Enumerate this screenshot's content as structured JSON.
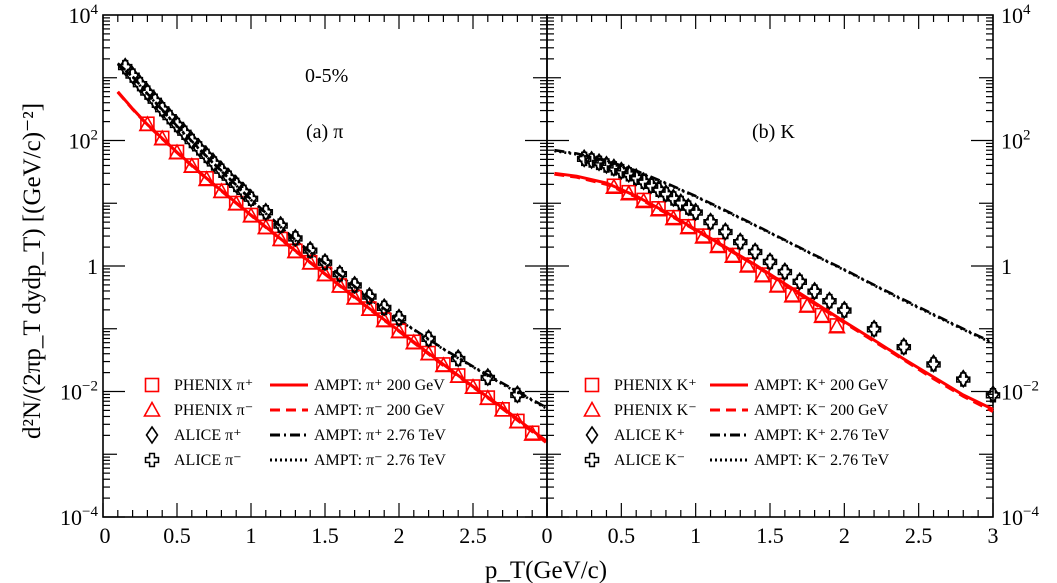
{
  "figure": {
    "ylabel": "d²N/(2πp_T dydp_T) [(GeV/c)⁻²]",
    "xlabel": "p_T(GeV/c)",
    "x_tick_labels": [
      "0",
      "0.5",
      "1",
      "1.5",
      "2",
      "2.5",
      "0",
      "0.5",
      "1",
      "1.5",
      "2",
      "2.5",
      "3"
    ],
    "y_tick_labels": [
      "10^-4",
      "10^-2",
      "1",
      "10^2",
      "10^4"
    ]
  },
  "chart_data": [
    {
      "type": "scatter",
      "panel": "left",
      "annotations": [
        "0-5%",
        "(a) π"
      ],
      "xlim": [
        0,
        3
      ],
      "ylim": [
        0.0001,
        10000
      ],
      "yscale": "log",
      "series": [
        {
          "name": "PHENIX π⁺",
          "marker": "square",
          "color": "#ff0000",
          "x": [
            0.3,
            0.4,
            0.5,
            0.6,
            0.7,
            0.8,
            0.9,
            1.0,
            1.1,
            1.2,
            1.3,
            1.4,
            1.5,
            1.6,
            1.7,
            1.8,
            1.9,
            2.0,
            2.1,
            2.2,
            2.3,
            2.4,
            2.5,
            2.6,
            2.7,
            2.8,
            2.9
          ],
          "y": [
            185,
            110,
            66,
            40,
            25,
            15.8,
            10.1,
            6.5,
            4.2,
            2.7,
            1.75,
            1.15,
            0.75,
            0.49,
            0.32,
            0.21,
            0.14,
            0.093,
            0.062,
            0.041,
            0.027,
            0.018,
            0.012,
            0.008,
            0.0052,
            0.0034,
            0.0022
          ]
        },
        {
          "name": "PHENIX π⁻",
          "marker": "triangle",
          "color": "#ff0000",
          "x": [
            0.3,
            0.4,
            0.5,
            0.6,
            0.7,
            0.8,
            0.9,
            1.0,
            1.1,
            1.2,
            1.3,
            1.4,
            1.5,
            1.6,
            1.7,
            1.8,
            1.9,
            2.0,
            2.1,
            2.2,
            2.3,
            2.4,
            2.5,
            2.6,
            2.7,
            2.8,
            2.9
          ],
          "y": [
            180,
            107,
            64,
            39,
            24,
            15.4,
            9.8,
            6.3,
            4.1,
            2.65,
            1.7,
            1.12,
            0.73,
            0.48,
            0.31,
            0.205,
            0.135,
            0.09,
            0.06,
            0.04,
            0.026,
            0.0175,
            0.0117,
            0.0078,
            0.0051,
            0.0033,
            0.0021
          ]
        },
        {
          "name": "ALICE π⁺",
          "marker": "diamond",
          "color": "#000000",
          "x": [
            0.15,
            0.2,
            0.25,
            0.3,
            0.35,
            0.4,
            0.45,
            0.5,
            0.55,
            0.6,
            0.65,
            0.7,
            0.75,
            0.8,
            0.85,
            0.9,
            0.95,
            1.0,
            1.1,
            1.2,
            1.3,
            1.4,
            1.5,
            1.6,
            1.7,
            1.8,
            1.9,
            2.0,
            2.2,
            2.4,
            2.6,
            2.8
          ],
          "y": [
            1500,
            1100,
            800,
            590,
            435,
            320,
            240,
            180,
            135,
            100,
            76,
            58,
            44,
            34,
            26,
            20,
            15.5,
            12,
            7.3,
            4.5,
            2.8,
            1.8,
            1.15,
            0.75,
            0.5,
            0.33,
            0.22,
            0.15,
            0.07,
            0.034,
            0.017,
            0.009
          ]
        },
        {
          "name": "ALICE π⁻",
          "marker": "cross",
          "color": "#000000",
          "x": [
            0.15,
            0.2,
            0.25,
            0.3,
            0.35,
            0.4,
            0.45,
            0.5,
            0.55,
            0.6,
            0.65,
            0.7,
            0.75,
            0.8,
            0.85,
            0.9,
            0.95,
            1.0,
            1.1,
            1.2,
            1.3,
            1.4,
            1.5,
            1.6,
            1.7,
            1.8,
            1.9,
            2.0,
            2.2,
            2.4,
            2.6,
            2.8
          ],
          "y": [
            1480,
            1080,
            790,
            580,
            430,
            315,
            236,
            177,
            133,
            98,
            75,
            57,
            43,
            33,
            25.5,
            19.6,
            15.2,
            11.8,
            7.2,
            4.4,
            2.75,
            1.76,
            1.13,
            0.74,
            0.49,
            0.325,
            0.215,
            0.147,
            0.069,
            0.033,
            0.0165,
            0.0088
          ]
        },
        {
          "name": "AMPT: π⁺ 200 GeV",
          "line": "solid",
          "color": "#ff0000",
          "x": [
            0.1,
            0.2,
            0.3,
            0.5,
            0.7,
            1.0,
            1.3,
            1.5,
            1.8,
            2.0,
            2.3,
            2.5,
            2.7,
            2.9,
            3.0
          ],
          "y": [
            600,
            320,
            180,
            65,
            25,
            6.5,
            1.75,
            0.75,
            0.21,
            0.093,
            0.027,
            0.012,
            0.0055,
            0.0024,
            0.0016
          ]
        },
        {
          "name": "AMPT: π⁻ 200 GeV",
          "line": "dashed",
          "color": "#ff0000",
          "x": [
            0.1,
            0.2,
            0.3,
            0.5,
            0.7,
            1.0,
            1.3,
            1.5,
            1.8,
            2.0,
            2.3,
            2.5,
            2.7,
            2.9,
            3.0
          ],
          "y": [
            590,
            315,
            177,
            64,
            24.5,
            6.4,
            1.72,
            0.74,
            0.205,
            0.091,
            0.026,
            0.0118,
            0.0053,
            0.0023,
            0.0015
          ]
        },
        {
          "name": "AMPT: π⁺ 2.76 TeV",
          "line": "dashdot",
          "color": "#000000",
          "x": [
            0.1,
            0.2,
            0.3,
            0.5,
            0.7,
            1.0,
            1.3,
            1.5,
            1.8,
            2.0,
            2.3,
            2.5,
            2.7,
            2.9,
            3.0
          ],
          "y": [
            1700,
            1050,
            560,
            170,
            56,
            11.5,
            2.6,
            1.1,
            0.31,
            0.14,
            0.048,
            0.025,
            0.0135,
            0.0074,
            0.0055
          ]
        },
        {
          "name": "AMPT: π⁻ 2.76 TeV",
          "line": "dotted",
          "color": "#000000",
          "x": [
            0.1,
            0.2,
            0.3,
            0.5,
            0.7,
            1.0,
            1.3,
            1.5,
            1.8,
            2.0,
            2.3,
            2.5,
            2.7,
            2.9,
            3.0
          ],
          "y": [
            1650,
            1030,
            550,
            167,
            55,
            11.3,
            2.55,
            1.08,
            0.3,
            0.137,
            0.047,
            0.0245,
            0.013,
            0.0072,
            0.0053
          ]
        }
      ]
    },
    {
      "type": "scatter",
      "panel": "right",
      "annotations": [
        "(b) K"
      ],
      "xlim": [
        0,
        3
      ],
      "ylim": [
        0.0001,
        10000
      ],
      "yscale": "log",
      "series": [
        {
          "name": "PHENIX K⁺",
          "marker": "square",
          "color": "#ff0000",
          "x": [
            0.45,
            0.55,
            0.65,
            0.75,
            0.85,
            0.95,
            1.05,
            1.15,
            1.25,
            1.35,
            1.45,
            1.55,
            1.65,
            1.75,
            1.85,
            1.95
          ],
          "y": [
            19,
            15,
            11.3,
            8.3,
            6.0,
            4.3,
            3.05,
            2.15,
            1.5,
            1.05,
            0.73,
            0.5,
            0.35,
            0.24,
            0.165,
            0.113
          ]
        },
        {
          "name": "PHENIX K⁻",
          "marker": "triangle",
          "color": "#ff0000",
          "x": [
            0.45,
            0.55,
            0.65,
            0.75,
            0.85,
            0.95,
            1.05,
            1.15,
            1.25,
            1.35,
            1.45,
            1.55,
            1.65,
            1.75,
            1.85,
            1.95
          ],
          "y": [
            18,
            14.2,
            10.7,
            7.9,
            5.7,
            4.1,
            2.9,
            2.05,
            1.43,
            1.0,
            0.7,
            0.48,
            0.335,
            0.23,
            0.158,
            0.108
          ]
        },
        {
          "name": "ALICE K⁺",
          "marker": "diamond",
          "color": "#000000",
          "x": [
            0.25,
            0.3,
            0.35,
            0.4,
            0.45,
            0.5,
            0.55,
            0.6,
            0.65,
            0.7,
            0.75,
            0.8,
            0.85,
            0.9,
            0.95,
            1.0,
            1.1,
            1.2,
            1.3,
            1.4,
            1.5,
            1.6,
            1.7,
            1.8,
            1.9,
            2.0,
            2.2,
            2.4,
            2.6,
            2.8,
            3.0
          ],
          "y": [
            52,
            49,
            45,
            41,
            37,
            33,
            29.5,
            26,
            22.5,
            19.5,
            16.8,
            14.3,
            12.2,
            10.3,
            8.7,
            7.3,
            5.1,
            3.55,
            2.45,
            1.7,
            1.18,
            0.82,
            0.57,
            0.4,
            0.28,
            0.2,
            0.1,
            0.052,
            0.028,
            0.016,
            0.009
          ]
        },
        {
          "name": "ALICE K⁻",
          "marker": "cross",
          "color": "#000000",
          "x": [
            0.25,
            0.3,
            0.35,
            0.4,
            0.45,
            0.5,
            0.55,
            0.6,
            0.65,
            0.7,
            0.75,
            0.8,
            0.85,
            0.9,
            0.95,
            1.0,
            1.1,
            1.2,
            1.3,
            1.4,
            1.5,
            1.6,
            1.7,
            1.8,
            1.9,
            2.0,
            2.2,
            2.4,
            2.6,
            2.8,
            3.0
          ],
          "y": [
            51,
            48,
            44,
            40,
            36,
            32.5,
            29,
            25.5,
            22,
            19,
            16.4,
            14,
            11.9,
            10.1,
            8.5,
            7.1,
            5.0,
            3.48,
            2.4,
            1.67,
            1.16,
            0.8,
            0.56,
            0.39,
            0.275,
            0.195,
            0.098,
            0.051,
            0.027,
            0.0155,
            0.0087
          ]
        },
        {
          "name": "AMPT: K⁺ 200 GeV",
          "line": "solid",
          "color": "#ff0000",
          "x": [
            0.05,
            0.2,
            0.4,
            0.6,
            0.8,
            1.0,
            1.2,
            1.4,
            1.6,
            1.8,
            2.0,
            2.2,
            2.4,
            2.6,
            2.8,
            3.0
          ],
          "y": [
            30,
            27,
            21,
            13,
            7.2,
            3.8,
            2.0,
            1.05,
            0.52,
            0.26,
            0.13,
            0.066,
            0.033,
            0.017,
            0.0088,
            0.0052
          ]
        },
        {
          "name": "AMPT: K⁻ 200 GeV",
          "line": "dashed",
          "color": "#ff0000",
          "x": [
            0.05,
            0.2,
            0.4,
            0.6,
            0.8,
            1.0,
            1.2,
            1.4,
            1.6,
            1.8,
            2.0,
            2.2,
            2.4,
            2.6,
            2.8,
            3.0
          ],
          "y": [
            29,
            26,
            20,
            12.6,
            7.0,
            3.7,
            1.95,
            1.02,
            0.5,
            0.25,
            0.125,
            0.063,
            0.032,
            0.016,
            0.0084,
            0.0048
          ]
        },
        {
          "name": "AMPT: K⁺ 2.76 TeV",
          "line": "dashdot",
          "color": "#000000",
          "x": [
            0.05,
            0.2,
            0.4,
            0.6,
            0.8,
            1.0,
            1.2,
            1.4,
            1.6,
            1.8,
            2.0,
            2.2,
            2.4,
            2.6,
            2.8,
            3.0
          ],
          "y": [
            70,
            62,
            48,
            33,
            21,
            13,
            7.7,
            4.5,
            2.6,
            1.5,
            0.88,
            0.5,
            0.29,
            0.17,
            0.1,
            0.06
          ]
        },
        {
          "name": "AMPT: K⁻ 2.76 TeV",
          "line": "dotted",
          "color": "#000000",
          "x": [
            0.05,
            0.2,
            0.4,
            0.6,
            0.8,
            1.0,
            1.2,
            1.4,
            1.6,
            1.8,
            2.0,
            2.2,
            2.4,
            2.6,
            2.8,
            3.0
          ],
          "y": [
            68,
            60,
            47,
            32,
            20.5,
            12.7,
            7.5,
            4.4,
            2.55,
            1.47,
            0.86,
            0.49,
            0.28,
            0.165,
            0.097,
            0.058
          ]
        }
      ]
    }
  ]
}
